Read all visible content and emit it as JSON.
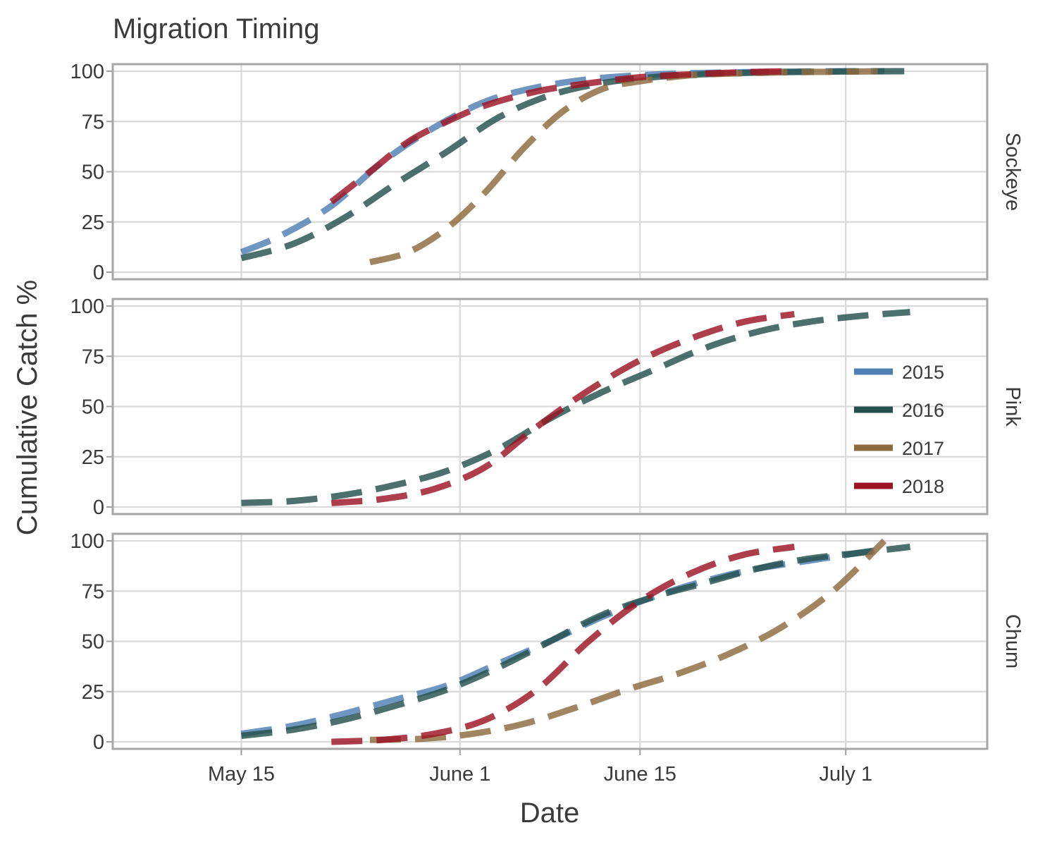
{
  "chart_data": {
    "type": "line",
    "title": "Migration Timing",
    "xlabel": "Date",
    "ylabel": "Cumulative Catch %",
    "x_ticks": [
      "May 15",
      "June 1",
      "June 15",
      "July 1"
    ],
    "x_tick_days": [
      0,
      17,
      31,
      47
    ],
    "xlim_days": [
      -10,
      58
    ],
    "y_ticks": [
      0,
      25,
      50,
      75,
      100
    ],
    "ylim": [
      -4,
      104
    ],
    "grid": true,
    "line_style": "dashed",
    "legend": {
      "position": "right-middle-panel",
      "entries": [
        {
          "label": "2015",
          "color": "#4f7fb3"
        },
        {
          "label": "2016",
          "color": "#24504a"
        },
        {
          "label": "2017",
          "color": "#8c6a3e"
        },
        {
          "label": "2018",
          "color": "#9c1424"
        }
      ]
    },
    "panels": [
      {
        "label": "Sockeye",
        "series": [
          {
            "name": "2015",
            "x": [
              "May 15",
              "May 18",
              "May 22",
              "May 26",
              "May 30",
              "June 3",
              "June 7",
              "June 11",
              "June 15",
              "June 19",
              "June 23",
              "June 27",
              "July 1",
              "July 4"
            ],
            "y": [
              10,
              18,
              33,
              55,
              72,
              85,
              92,
              96,
              98,
              99,
              99.5,
              99.8,
              100,
              100
            ]
          },
          {
            "name": "2016",
            "x": [
              "May 15",
              "May 19",
              "May 23",
              "May 27",
              "May 31",
              "June 4",
              "June 8",
              "June 12",
              "June 16",
              "June 20",
              "June 24",
              "June 28",
              "July 2",
              "July 6"
            ],
            "y": [
              7,
              14,
              27,
              44,
              60,
              77,
              88,
              94,
              97,
              98.5,
              99.3,
              99.7,
              99.9,
              100
            ]
          },
          {
            "name": "2017",
            "x": [
              "May 25",
              "May 28",
              "May 31",
              "June 3",
              "June 6",
              "June 9",
              "June 12",
              "June 15",
              "June 19",
              "June 23",
              "June 27",
              "July 1",
              "July 4"
            ],
            "y": [
              5,
              10,
              22,
              40,
              62,
              80,
              91,
              95,
              98,
              99,
              99.5,
              99.8,
              100
            ]
          },
          {
            "name": "2018",
            "x": [
              "May 22",
              "May 25",
              "May 28",
              "May 31",
              "June 3",
              "June 7",
              "June 11",
              "June 15",
              "June 19",
              "June 23",
              "June 27"
            ],
            "y": [
              35,
              50,
              65,
              75,
              83,
              90,
              94,
              97,
              98.5,
              99.5,
              100
            ]
          }
        ]
      },
      {
        "label": "Pink",
        "series": [
          {
            "name": "2016",
            "x": [
              "May 15",
              "May 19",
              "May 23",
              "May 27",
              "May 31",
              "June 4",
              "June 8",
              "June 12",
              "June 16",
              "June 20",
              "June 24",
              "June 28",
              "July 2",
              "July 6"
            ],
            "y": [
              2,
              3,
              6,
              11,
              18,
              29,
              44,
              57,
              68,
              79,
              87,
              92,
              95,
              97
            ]
          },
          {
            "name": "2018",
            "x": [
              "May 22",
              "May 26",
              "May 30",
              "June 3",
              "June 7",
              "June 11",
              "June 15",
              "June 19",
              "June 23",
              "June 27"
            ],
            "y": [
              2,
              4,
              9,
              20,
              40,
              58,
              73,
              84,
              92,
              96
            ]
          }
        ]
      },
      {
        "label": "Chum",
        "series": [
          {
            "name": "2015",
            "x": [
              "May 15",
              "May 19",
              "May 23",
              "May 27",
              "May 31",
              "June 4",
              "June 8",
              "June 12",
              "June 16",
              "June 20",
              "June 24",
              "June 28",
              "July 2",
              "July 4"
            ],
            "y": [
              4,
              8,
              14,
              21,
              28,
              39,
              50,
              62,
              72,
              80,
              86,
              90,
              94,
              96
            ]
          },
          {
            "name": "2016",
            "x": [
              "May 15",
              "May 19",
              "May 23",
              "May 27",
              "May 31",
              "June 4",
              "June 8",
              "June 12",
              "June 16",
              "June 20",
              "June 24",
              "June 28",
              "July 2",
              "July 6"
            ],
            "y": [
              3,
              6,
              11,
              18,
              26,
              37,
              50,
              63,
              72,
              79,
              86,
              91,
              94,
              97
            ]
          },
          {
            "name": "2017",
            "x": [
              "May 25",
              "May 29",
              "June 2",
              "June 6",
              "June 10",
              "June 14",
              "June 18",
              "June 22",
              "June 26",
              "June 30",
              "July 4"
            ],
            "y": [
              1,
              1.5,
              4,
              9,
              17,
              26,
              34,
              44,
              57,
              75,
              100
            ]
          },
          {
            "name": "2018",
            "x": [
              "May 22",
              "May 26",
              "May 30",
              "June 3",
              "June 7",
              "June 11",
              "June 15",
              "June 19",
              "June 23",
              "June 27"
            ],
            "y": [
              0,
              1,
              4,
              11,
              26,
              50,
              70,
              84,
              93,
              97
            ]
          }
        ]
      }
    ]
  }
}
